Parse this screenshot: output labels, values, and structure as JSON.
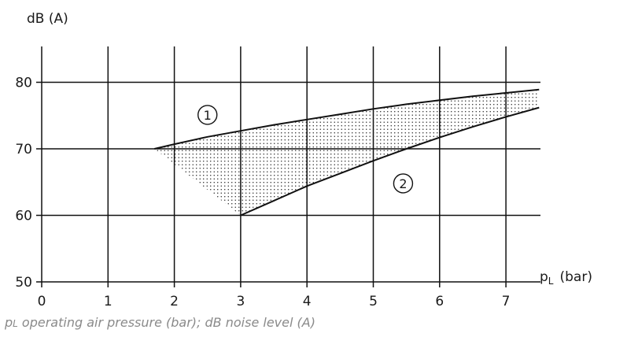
{
  "chart_data": {
    "type": "area",
    "ylabel": "dB (A)",
    "xlabel_main": "p",
    "xlabel_sub": "L",
    "xlabel_unit": "(bar)",
    "xlim": [
      0,
      7.5
    ],
    "ylim": [
      50,
      85
    ],
    "xticks": [
      0,
      1,
      2,
      3,
      4,
      5,
      6,
      7
    ],
    "yticks": [
      50,
      60,
      70,
      80
    ],
    "grid": true,
    "series": [
      {
        "name": "1",
        "x": [
          1.7,
          2,
          2.5,
          3,
          3.5,
          4,
          4.5,
          5,
          5.5,
          6,
          6.5,
          7,
          7.5
        ],
        "y": [
          70.0,
          70.7,
          71.8,
          72.7,
          73.6,
          74.4,
          75.2,
          76.0,
          76.7,
          77.3,
          77.9,
          78.4,
          78.9
        ]
      },
      {
        "name": "2",
        "x": [
          3,
          3.5,
          4,
          4.5,
          5,
          5.5,
          6,
          6.5,
          7,
          7.5
        ],
        "y": [
          60.0,
          62.2,
          64.4,
          66.3,
          68.2,
          70.0,
          71.7,
          73.3,
          74.8,
          76.2
        ]
      }
    ],
    "markers": [
      {
        "label": "1",
        "x": 2.5,
        "y": 75.1
      },
      {
        "label": "2",
        "x": 5.45,
        "y": 64.8
      }
    ]
  },
  "caption": {
    "sym": "p",
    "sub": "L",
    "rest": " operating air pressure (bar); dB noise level (A)"
  }
}
